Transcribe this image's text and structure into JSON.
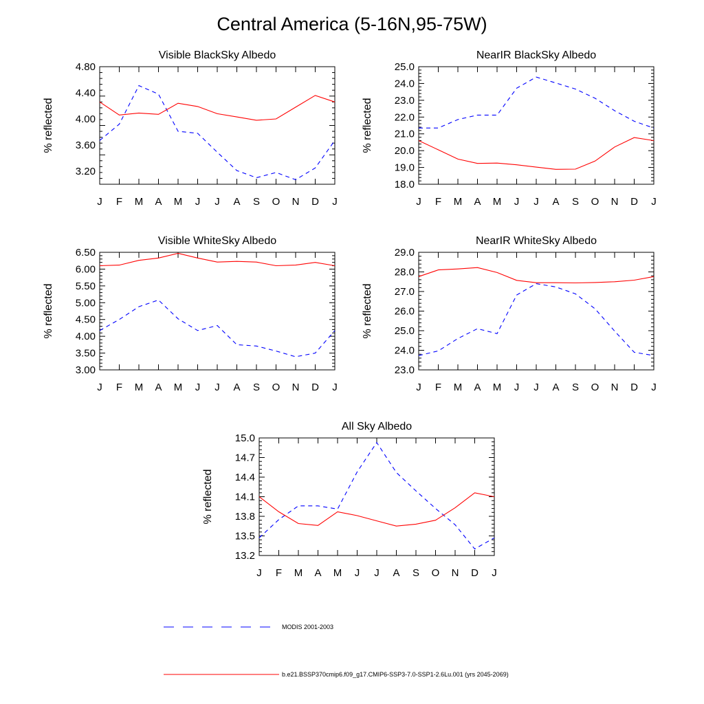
{
  "title": "Central America (5-16N,95-75W)",
  "months": [
    "J",
    "F",
    "M",
    "A",
    "M",
    "J",
    "J",
    "A",
    "S",
    "O",
    "N",
    "D",
    "J"
  ],
  "legend": [
    {
      "label": "MODIS 2001-2003",
      "color": "#0000ff",
      "dash": true
    },
    {
      "label": "b.e21.BSSP370cmip6.f09_g17.CMIP6-SSP3-7.0-SSP1-2.6Lu.001 (yrs 2045-2069)",
      "color": "#ff0000",
      "dash": false
    }
  ],
  "chart_data": [
    {
      "type": "line",
      "title": "Visible BlackSky Albedo",
      "ylabel": "% reflected",
      "ylim": [
        3.0,
        4.8
      ],
      "yticks": [
        "4.80",
        "4.40",
        "4.00",
        "3.60",
        "3.20"
      ],
      "series": [
        {
          "name": "MODIS 2001-2003",
          "values": [
            3.67,
            3.92,
            4.51,
            4.38,
            3.81,
            3.78,
            3.49,
            3.21,
            3.1,
            3.18,
            3.07,
            3.25,
            3.67
          ]
        },
        {
          "name": "b.e21.BSSP370cmip6.f09_g17.CMIP6-SSP3-7.0-SSP1-2.6Lu.001 (yrs 2045-2069)",
          "values": [
            4.26,
            4.06,
            4.09,
            4.07,
            4.24,
            4.19,
            4.08,
            4.03,
            3.98,
            4.0,
            4.18,
            4.36,
            4.26
          ]
        }
      ]
    },
    {
      "type": "line",
      "title": "NearIR BlackSky Albedo",
      "ylabel": "% reflected",
      "ylim": [
        18.0,
        25.0
      ],
      "yticks": [
        "25.0",
        "24.0",
        "23.0",
        "22.0",
        "21.0",
        "20.0",
        "19.0",
        "18.0"
      ],
      "series": [
        {
          "name": "MODIS 2001-2003",
          "values": [
            21.35,
            21.35,
            21.85,
            22.12,
            22.12,
            23.72,
            24.38,
            24.03,
            23.67,
            23.12,
            22.38,
            21.75,
            21.35
          ]
        },
        {
          "name": "b.e21.BSSP370cmip6.f09_g17.CMIP6-SSP3-7.0-SSP1-2.6Lu.001 (yrs 2045-2069)",
          "values": [
            20.6,
            20.05,
            19.5,
            19.24,
            19.26,
            19.16,
            19.02,
            18.89,
            18.9,
            19.38,
            20.22,
            20.78,
            20.6
          ]
        }
      ]
    },
    {
      "type": "line",
      "title": "Visible WhiteSky Albedo",
      "ylabel": "% reflected",
      "ylim": [
        3.0,
        6.5
      ],
      "yticks": [
        "6.50",
        "6.00",
        "5.50",
        "5.00",
        "4.50",
        "4.00",
        "3.50",
        "3.00"
      ],
      "series": [
        {
          "name": "MODIS 2001-2003",
          "values": [
            4.17,
            4.5,
            4.88,
            5.08,
            4.52,
            4.17,
            4.32,
            3.75,
            3.71,
            3.56,
            3.39,
            3.5,
            4.17
          ]
        },
        {
          "name": "b.e21.BSSP370cmip6.f09_g17.CMIP6-SSP3-7.0-SSP1-2.6Lu.001 (yrs 2045-2069)",
          "values": [
            6.1,
            6.12,
            6.26,
            6.33,
            6.47,
            6.33,
            6.21,
            6.23,
            6.21,
            6.1,
            6.12,
            6.2,
            6.1
          ]
        }
      ]
    },
    {
      "type": "line",
      "title": "NearIR WhiteSky Albedo",
      "ylabel": "% reflected",
      "ylim": [
        23.0,
        29.0
      ],
      "yticks": [
        "29.0",
        "28.0",
        "27.0",
        "26.0",
        "25.0",
        "24.0",
        "23.0"
      ],
      "series": [
        {
          "name": "MODIS 2001-2003",
          "values": [
            23.73,
            23.97,
            24.6,
            25.1,
            24.85,
            26.82,
            27.4,
            27.23,
            26.88,
            26.12,
            24.98,
            23.9,
            23.73
          ]
        },
        {
          "name": "b.e21.BSSP370cmip6.f09_g17.CMIP6-SSP3-7.0-SSP1-2.6Lu.001 (yrs 2045-2069)",
          "values": [
            27.76,
            28.1,
            28.15,
            28.22,
            27.97,
            27.57,
            27.45,
            27.45,
            27.44,
            27.46,
            27.5,
            27.58,
            27.76
          ]
        }
      ]
    },
    {
      "type": "line",
      "title": "All Sky Albedo",
      "ylabel": "% reflected",
      "ylim": [
        13.2,
        15.0
      ],
      "yticks": [
        "15.0",
        "14.7",
        "14.4",
        "14.1",
        "13.8",
        "13.5",
        "13.2"
      ],
      "series": [
        {
          "name": "MODIS 2001-2003",
          "values": [
            13.47,
            13.75,
            13.96,
            13.96,
            13.91,
            14.48,
            14.93,
            14.47,
            14.19,
            13.92,
            13.67,
            13.3,
            13.47
          ]
        },
        {
          "name": "b.e21.BSSP370cmip6.f09_g17.CMIP6-SSP3-7.0-SSP1-2.6Lu.001 (yrs 2045-2069)",
          "values": [
            14.1,
            13.87,
            13.69,
            13.66,
            13.87,
            13.81,
            13.73,
            13.65,
            13.68,
            13.74,
            13.93,
            14.16,
            14.1
          ]
        }
      ]
    }
  ]
}
